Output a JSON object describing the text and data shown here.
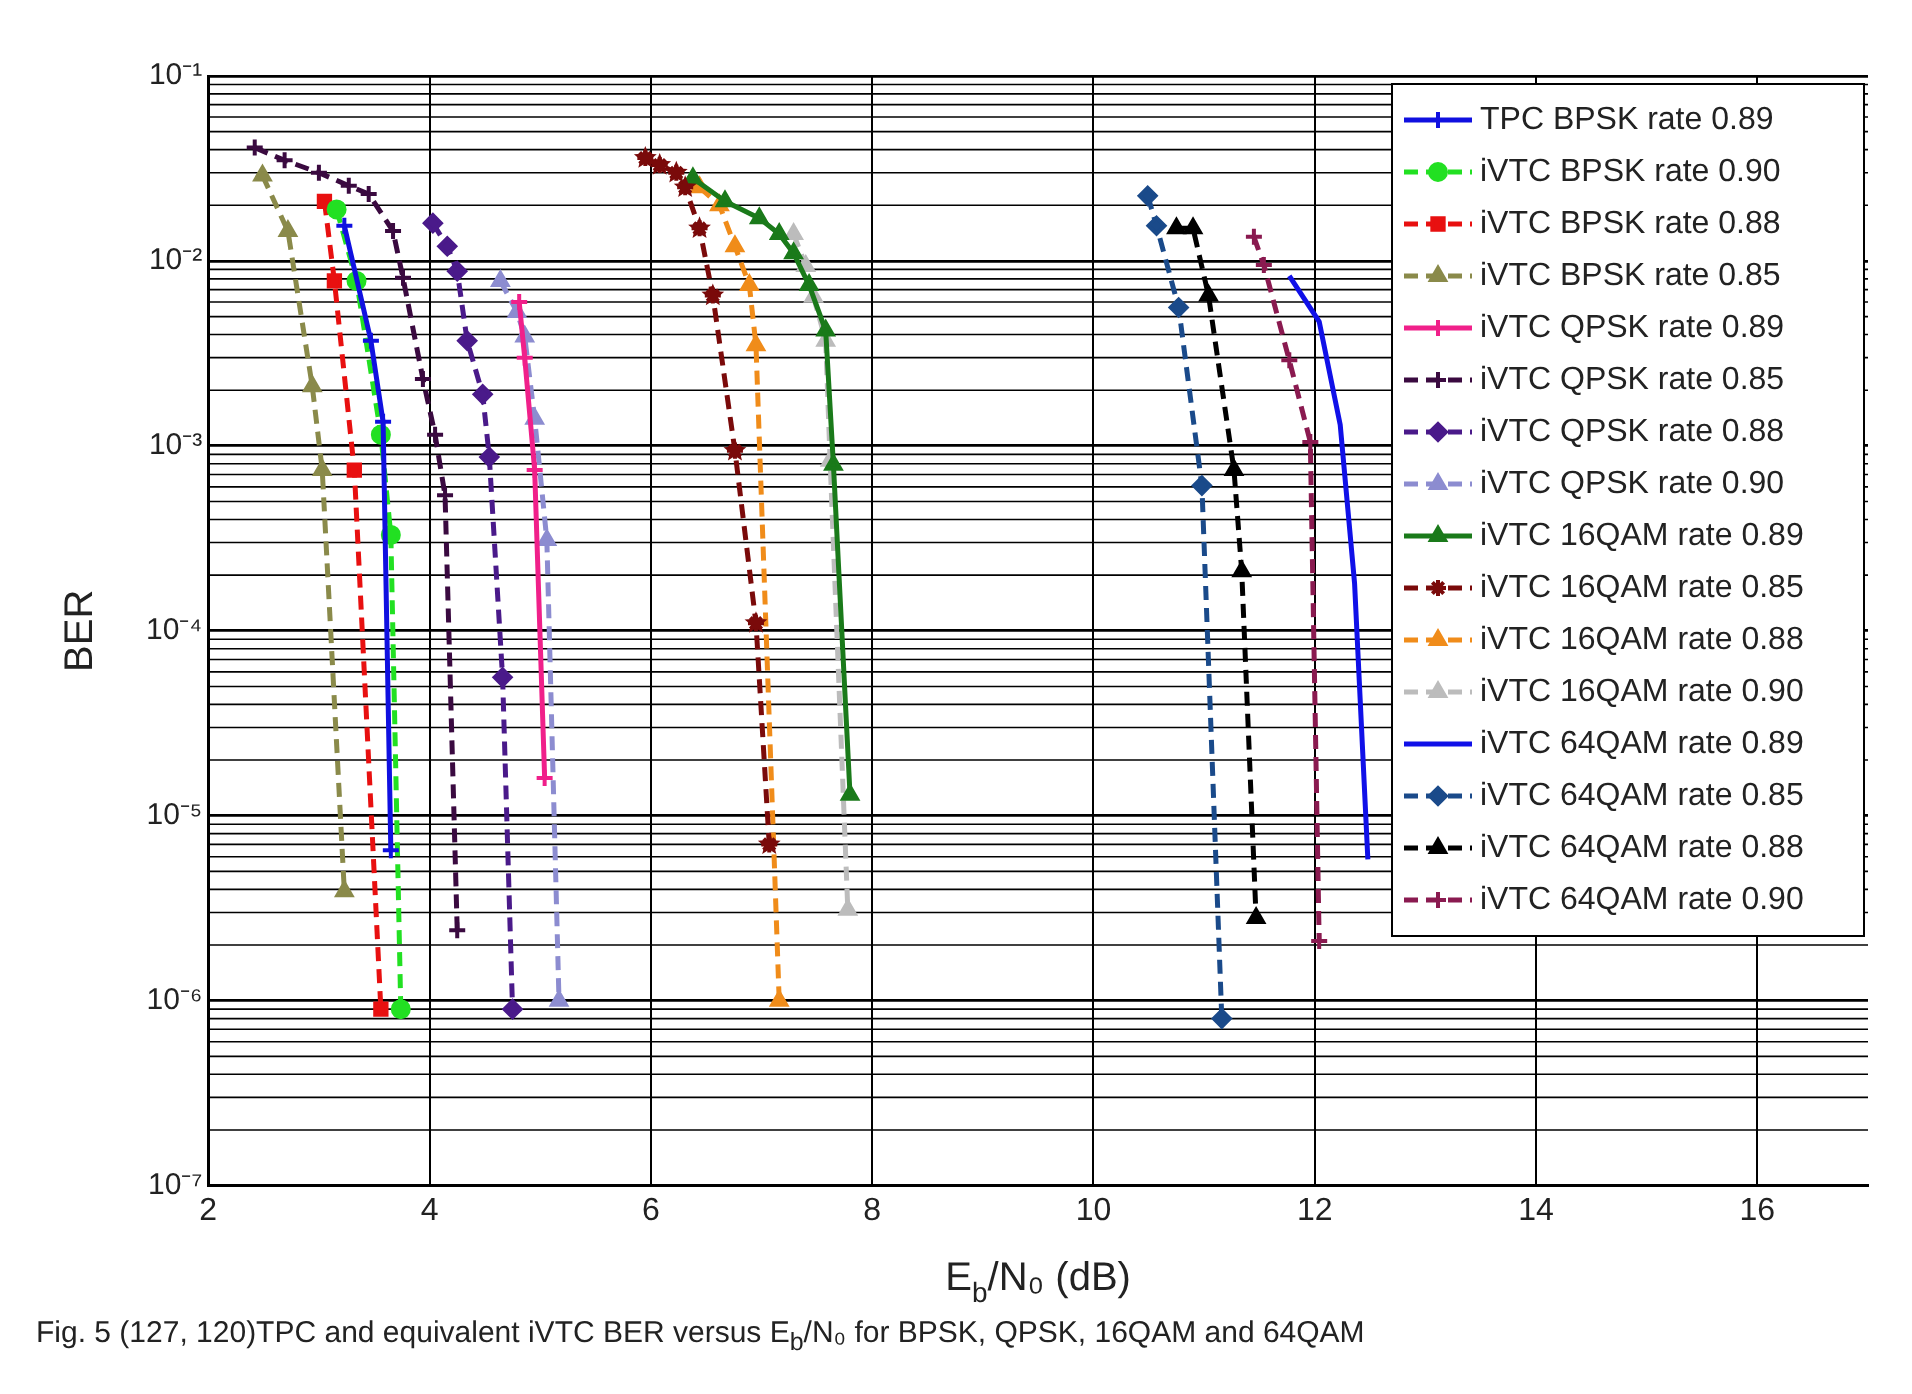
{
  "chart_data": {
    "type": "line",
    "xlabel": "E$_{b}$/N₀ (dB)",
    "ylabel": "BER",
    "annotations": [
      "Fig. 5 (127, 120)TPC and equivalent iVTC BER versus E$_{b}$/N₀ for BPSK, QPSK, 16QAM and 64QAM"
    ],
    "xlim": [
      2,
      17
    ],
    "xticks": [
      2,
      4,
      6,
      8,
      10,
      12,
      14,
      16
    ],
    "ylim": [
      1e-07,
      0.1
    ],
    "log": "y",
    "yticks": [
      {
        "value": 1e-07,
        "label": "10⁻⁷"
      },
      {
        "value": 1e-06,
        "label": "10⁻⁶"
      },
      {
        "value": 1e-05,
        "label": "10⁻⁵"
      },
      {
        "value": 0.0001,
        "label": "10⁻⁴"
      },
      {
        "value": 0.001,
        "label": "10⁻³"
      },
      {
        "value": 0.01,
        "label": "10⁻²"
      },
      {
        "value": 0.1,
        "label": "10⁻¹"
      }
    ],
    "grid": true,
    "legend": "top right",
    "series": [
      {
        "name": "TPC BPSK rate 0.89",
        "color": "#1010e0",
        "marker": "cross",
        "line_style": "solid",
        "x": [
          3.23,
          3.47,
          3.58,
          3.65
        ],
        "values": [
          0.0155,
          0.0037,
          0.00135,
          6.5e-06
        ]
      },
      {
        "name": "iVTC BPSK rate 0.90",
        "color": "#22e022",
        "marker": "circle",
        "line_style": "dashed",
        "x": [
          3.16,
          3.34,
          3.56,
          3.65,
          3.74
        ],
        "values": [
          0.019,
          0.0078,
          0.00115,
          0.00033,
          9e-07
        ]
      },
      {
        "name": "iVTC BPSK rate 0.88",
        "color": "#e81010",
        "marker": "square",
        "line_style": "dashed",
        "x": [
          3.05,
          3.14,
          3.32,
          3.56
        ],
        "values": [
          0.021,
          0.0078,
          0.00074,
          9e-07
        ]
      },
      {
        "name": "iVTC BPSK rate 0.85",
        "color": "#8a8a4a",
        "marker": "triangle",
        "line_style": "dashed",
        "x": [
          2.49,
          2.72,
          2.94,
          3.03,
          3.23
        ],
        "values": [
          0.029,
          0.0145,
          0.0021,
          0.00074,
          3.9e-06
        ]
      },
      {
        "name": "iVTC QPSK rate 0.89",
        "color": "#f0208a",
        "marker": "cross",
        "line_style": "solid",
        "x": [
          4.81,
          4.86,
          4.95,
          5.04
        ],
        "values": [
          0.006,
          0.003,
          0.00074,
          1.6e-05
        ]
      },
      {
        "name": "iVTC QPSK rate 0.85",
        "color": "#3a0a40",
        "marker": "cross",
        "line_style": "dashed",
        "x": [
          2.42,
          2.69,
          3.0,
          3.27,
          3.45,
          3.67,
          3.76,
          3.94,
          4.05,
          4.14,
          4.25
        ],
        "values": [
          0.041,
          0.035,
          0.03,
          0.0255,
          0.023,
          0.0145,
          0.0081,
          0.0023,
          0.00115,
          0.00054,
          2.4e-06
        ]
      },
      {
        "name": "iVTC QPSK rate 0.88",
        "color": "#4a1a8a",
        "marker": "diamond",
        "line_style": "dashed",
        "x": [
          4.03,
          4.16,
          4.25,
          4.34,
          4.48,
          4.54,
          4.66,
          4.75
        ],
        "values": [
          0.016,
          0.012,
          0.0088,
          0.0037,
          0.0019,
          0.00087,
          5.6e-05,
          9e-07
        ]
      },
      {
        "name": "iVTC QPSK rate 0.90",
        "color": "#8c8cd0",
        "marker": "triangle",
        "line_style": "dashed",
        "x": [
          4.64,
          4.79,
          4.86,
          4.95,
          5.06,
          5.17
        ],
        "values": [
          0.0078,
          0.0053,
          0.0039,
          0.0014,
          0.00031,
          1e-06
        ]
      },
      {
        "name": "iVTC 16QAM rate 0.89",
        "color": "#1a7a1a",
        "marker": "triangle",
        "line_style": "solid",
        "x": [
          6.38,
          6.67,
          6.98,
          7.16,
          7.29,
          7.43,
          7.58,
          7.65,
          7.8
        ],
        "values": [
          0.028,
          0.021,
          0.017,
          0.014,
          0.011,
          0.0074,
          0.0042,
          0.00079,
          1.3e-05
        ]
      },
      {
        "name": "iVTC 16QAM rate 0.85",
        "color": "#7a0a0a",
        "marker": "star",
        "line_style": "dashed",
        "x": [
          5.95,
          6.08,
          6.23,
          6.31,
          6.44,
          6.56,
          6.76,
          6.95,
          7.07
        ],
        "values": [
          0.036,
          0.033,
          0.03,
          0.025,
          0.015,
          0.0065,
          0.00094,
          0.00011,
          7e-06
        ]
      },
      {
        "name": "iVTC 16QAM rate 0.88",
        "color": "#f08c1a",
        "marker": "triangle",
        "line_style": "dashed",
        "x": [
          6.44,
          6.62,
          6.76,
          6.89,
          6.95,
          7.16
        ],
        "values": [
          0.025,
          0.02,
          0.012,
          0.0074,
          0.0035,
          1e-06
        ]
      },
      {
        "name": "iVTC 16QAM rate 0.90",
        "color": "#bcbcbc",
        "marker": "triangle",
        "line_style": "dashed",
        "x": [
          7.29,
          7.4,
          7.47,
          7.58,
          7.62,
          7.78
        ],
        "values": [
          0.014,
          0.0094,
          0.0064,
          0.0037,
          0.00083,
          3.1e-06
        ]
      },
      {
        "name": "iVTC 64QAM rate 0.89",
        "color": "#1010e8",
        "marker": "none",
        "line_style": "solid",
        "x": [
          11.77,
          12.04,
          12.23,
          12.36,
          12.48
        ],
        "values": [
          0.0083,
          0.0047,
          0.0013,
          0.00018,
          5.8e-06
        ]
      },
      {
        "name": "iVTC 64QAM rate 0.85",
        "color": "#1a4a8a",
        "marker": "diamond",
        "line_style": "dashed",
        "x": [
          10.49,
          10.57,
          10.77,
          10.98,
          11.16
        ],
        "values": [
          0.0225,
          0.0155,
          0.0056,
          0.00061,
          8e-07
        ]
      },
      {
        "name": "iVTC 64QAM rate 0.88",
        "color": "#000000",
        "marker": "triangle",
        "line_style": "dashed",
        "x": [
          10.75,
          10.9,
          11.04,
          11.27,
          11.34,
          11.47
        ],
        "values": [
          0.015,
          0.015,
          0.0065,
          0.00074,
          0.00021,
          2.8e-06
        ]
      },
      {
        "name": "iVTC 64QAM rate 0.90",
        "color": "#8a1a50",
        "marker": "cross",
        "line_style": "dashed",
        "x": [
          11.45,
          11.54,
          11.77,
          11.96,
          12.04
        ],
        "values": [
          0.0135,
          0.0095,
          0.0029,
          0.00105,
          2.1e-06
        ]
      }
    ]
  }
}
